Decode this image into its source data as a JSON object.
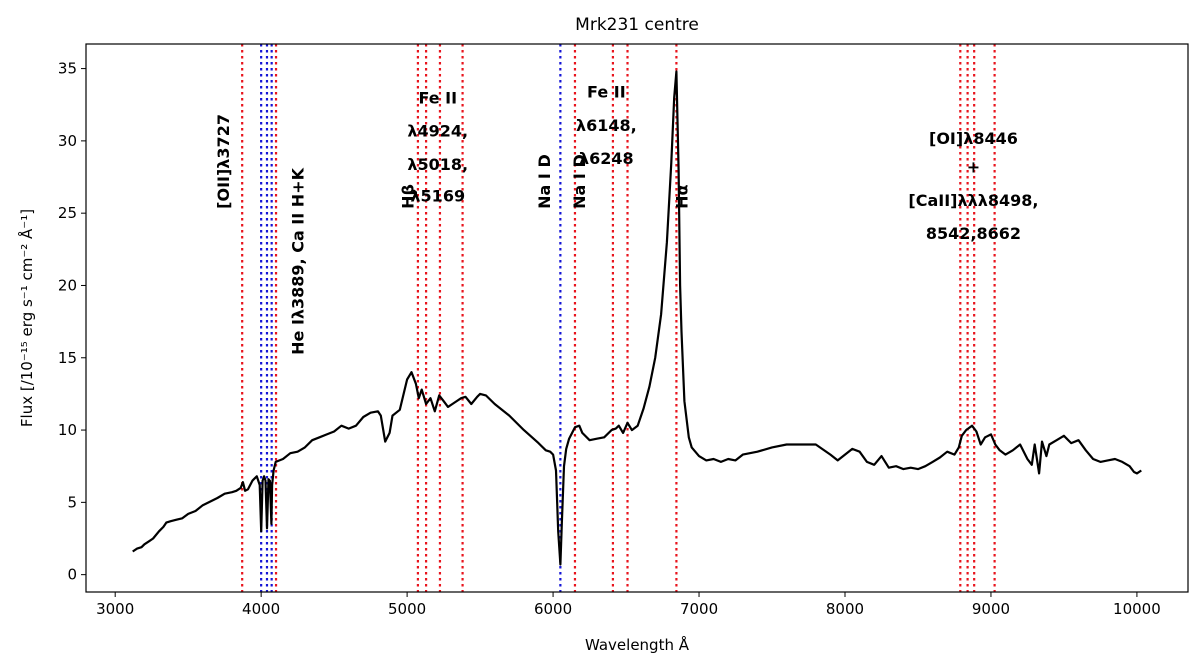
{
  "chart_data": {
    "type": "line",
    "title": "Mrk231 centre",
    "xlabel": "Wavelength Å",
    "ylabel": "Flux  [/10⁻¹⁵ erg s⁻¹ cm⁻² Å⁻¹]",
    "xlim": [
      2800,
      10350
    ],
    "ylim": [
      -1.2,
      36.7
    ],
    "xticks": [
      3000,
      4000,
      5000,
      6000,
      7000,
      8000,
      9000,
      10000
    ],
    "yticks": [
      0,
      5,
      10,
      15,
      20,
      25,
      30,
      35
    ],
    "grid": false,
    "series": [
      {
        "color": "#000000",
        "x": [
          3120,
          3150,
          3180,
          3200,
          3230,
          3260,
          3300,
          3330,
          3350,
          3380,
          3420,
          3460,
          3500,
          3550,
          3600,
          3640,
          3700,
          3750,
          3800,
          3830,
          3860,
          3875,
          3890,
          3910,
          3940,
          3970,
          3990,
          4000,
          4010,
          4020,
          4030,
          4040,
          4050,
          4060,
          4070,
          4075,
          4085,
          4100,
          4150,
          4200,
          4250,
          4300,
          4350,
          4400,
          4450,
          4500,
          4550,
          4600,
          4650,
          4700,
          4750,
          4800,
          4820,
          4850,
          4880,
          4900,
          4950,
          5000,
          5030,
          5060,
          5080,
          5100,
          5130,
          5160,
          5190,
          5220,
          5250,
          5280,
          5310,
          5340,
          5370,
          5400,
          5440,
          5480,
          5500,
          5540,
          5600,
          5700,
          5800,
          5900,
          5950,
          5980,
          6000,
          6020,
          6035,
          6050,
          6060,
          6075,
          6090,
          6110,
          6150,
          6180,
          6200,
          6250,
          6300,
          6350,
          6400,
          6430,
          6450,
          6480,
          6510,
          6540,
          6580,
          6620,
          6660,
          6700,
          6740,
          6780,
          6810,
          6830,
          6845,
          6860,
          6870,
          6880,
          6900,
          6930,
          6950,
          7000,
          7050,
          7100,
          7150,
          7200,
          7250,
          7300,
          7400,
          7500,
          7600,
          7700,
          7800,
          7900,
          7950,
          8000,
          8050,
          8100,
          8150,
          8200,
          8250,
          8300,
          8350,
          8400,
          8450,
          8500,
          8550,
          8600,
          8650,
          8700,
          8750,
          8780,
          8800,
          8830,
          8870,
          8900,
          8930,
          8960,
          9000,
          9030,
          9060,
          9100,
          9150,
          9200,
          9250,
          9280,
          9300,
          9330,
          9350,
          9380,
          9400,
          9450,
          9500,
          9550,
          9600,
          9650,
          9700,
          9750,
          9800,
          9850,
          9900,
          9950,
          9980,
          10000,
          10030
        ],
        "y": [
          1.6,
          1.8,
          1.9,
          2.1,
          2.3,
          2.5,
          3.0,
          3.3,
          3.6,
          3.7,
          3.8,
          3.9,
          4.2,
          4.4,
          4.8,
          5.0,
          5.3,
          5.6,
          5.7,
          5.8,
          6.0,
          6.4,
          5.8,
          5.9,
          6.5,
          6.8,
          6.2,
          3.0,
          6.5,
          6.8,
          6.5,
          3.2,
          6.6,
          6.5,
          3.5,
          6.2,
          7.2,
          7.8,
          8.0,
          8.4,
          8.5,
          8.8,
          9.3,
          9.5,
          9.7,
          9.9,
          10.3,
          10.1,
          10.3,
          10.9,
          11.2,
          11.3,
          11.0,
          9.2,
          9.8,
          11.0,
          11.4,
          13.5,
          14.0,
          13.2,
          12.2,
          12.8,
          11.8,
          12.2,
          11.3,
          12.4,
          12.0,
          11.6,
          11.8,
          12.0,
          12.2,
          12.3,
          11.8,
          12.3,
          12.5,
          12.4,
          11.8,
          11.0,
          10.0,
          9.1,
          8.6,
          8.5,
          8.3,
          7.2,
          3.0,
          0.7,
          3.5,
          7.5,
          8.7,
          9.4,
          10.2,
          10.3,
          9.8,
          9.3,
          9.4,
          9.5,
          10.0,
          10.1,
          10.3,
          9.8,
          10.5,
          10.0,
          10.3,
          11.5,
          13.0,
          15.0,
          18.0,
          23.0,
          28.5,
          33.0,
          34.8,
          28.0,
          20.0,
          16.8,
          12.0,
          9.5,
          8.8,
          8.2,
          7.9,
          8.0,
          7.8,
          8.0,
          7.9,
          8.3,
          8.5,
          8.8,
          9.0,
          9.0,
          9.0,
          8.3,
          7.9,
          8.3,
          8.7,
          8.5,
          7.8,
          7.6,
          8.2,
          7.4,
          7.5,
          7.3,
          7.4,
          7.3,
          7.5,
          7.8,
          8.1,
          8.5,
          8.3,
          8.8,
          9.6,
          10.0,
          10.3,
          9.9,
          9.0,
          9.5,
          9.7,
          9.0,
          8.6,
          8.3,
          8.6,
          9.0,
          8.0,
          7.6,
          9.0,
          7.0,
          9.2,
          8.2,
          9.0,
          9.3,
          9.6,
          9.1,
          9.3,
          8.6,
          8.0,
          7.8,
          7.9,
          8.0,
          7.8,
          7.5,
          7.1,
          7.0,
          7.2
        ]
      }
    ],
    "vlines_red": [
      3870,
      4102,
      5074,
      5130,
      5225,
      5380,
      6150,
      6410,
      6510,
      6845,
      8790,
      8840,
      8885,
      9025
    ],
    "vlines_blue": [
      4000,
      4040,
      4072,
      6050
    ],
    "annotations": [
      {
        "text": "[OII]λ3727",
        "x": 3780,
        "y": 25.3,
        "rotate": true
      },
      {
        "text": "He Iλ3889, Ca II H+K",
        "x": 4290,
        "y": 15.2,
        "rotate": true
      },
      {
        "text": "Hβ",
        "x": 5045,
        "y": 25.3,
        "rotate": true
      },
      {
        "text": "Fe II",
        "x": 5210,
        "y": 32.6,
        "rotate": false
      },
      {
        "text": "λ4924,",
        "x": 5210,
        "y": 30.3,
        "rotate": false
      },
      {
        "text": "λ5018,",
        "x": 5210,
        "y": 28.0,
        "rotate": false
      },
      {
        "text": "λ5169",
        "x": 5210,
        "y": 25.8,
        "rotate": false
      },
      {
        "text": "Na I D",
        "x": 5980,
        "y": 25.3,
        "rotate": true
      },
      {
        "text": "Na I D",
        "x": 6220,
        "y": 25.3,
        "rotate": true
      },
      {
        "text": "Fe II",
        "x": 6365,
        "y": 33.0,
        "rotate": false
      },
      {
        "text": "λ6148,",
        "x": 6365,
        "y": 30.7,
        "rotate": false
      },
      {
        "text": "λ6248",
        "x": 6365,
        "y": 28.4,
        "rotate": false
      },
      {
        "text": "Hα",
        "x": 6920,
        "y": 25.3,
        "rotate": true
      },
      {
        "text": "[OI]λ8446",
        "x": 8880,
        "y": 29.8,
        "rotate": false
      },
      {
        "text": "+",
        "x": 8880,
        "y": 27.8,
        "rotate": false
      },
      {
        "text": "[CaII]λλλ8498,",
        "x": 8880,
        "y": 25.5,
        "rotate": false
      },
      {
        "text": "8542,8662",
        "x": 8880,
        "y": 23.2,
        "rotate": false
      }
    ]
  }
}
